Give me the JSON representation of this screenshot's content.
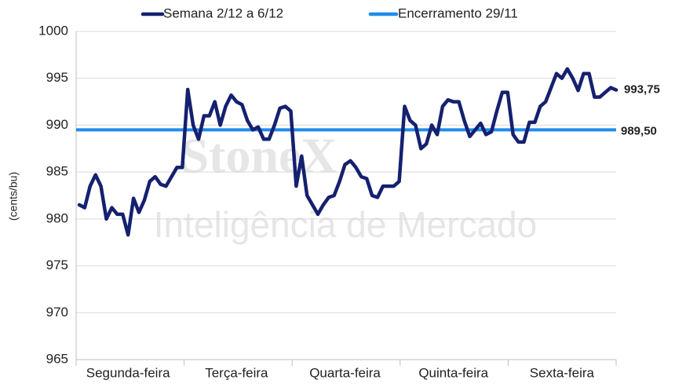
{
  "chart_data": {
    "type": "line",
    "y_label": "(cents/bu)",
    "watermark": [
      "StoneX",
      "Inteligência de Mercado"
    ],
    "categories": [
      null,
      null,
      null,
      null,
      null,
      null,
      null,
      null,
      null,
      "Segunda-feira",
      null,
      null,
      null,
      null,
      null,
      null,
      null,
      null,
      null,
      null,
      null,
      null,
      null,
      null,
      null,
      null,
      null,
      null,
      null,
      "Terça-feira",
      null,
      null,
      null,
      null,
      null,
      null,
      null,
      null,
      null,
      null,
      null,
      null,
      null,
      null,
      null,
      null,
      null,
      null,
      null,
      "Quarta-feira",
      null,
      null,
      null,
      null,
      null,
      null,
      null,
      null,
      null,
      null,
      null,
      null,
      null,
      null,
      null,
      null,
      null,
      null,
      null,
      "Quinta-feira",
      null,
      null,
      null,
      null,
      null,
      null,
      null,
      null,
      null,
      null,
      null,
      null,
      null,
      null,
      null,
      null,
      null,
      null,
      null,
      "Sexta-feira",
      null,
      null,
      null,
      null,
      null,
      null,
      null,
      null,
      null,
      null
    ],
    "series": [
      {
        "name": "Semana 2/12 a 6/12",
        "color": "#15206f",
        "end_label": "993,75",
        "values": [
          981.5,
          981.2,
          983.5,
          984.7,
          983.5,
          980,
          981.2,
          980.5,
          980.5,
          978.3,
          982.2,
          980.7,
          982,
          984,
          984.5,
          983.7,
          983.5,
          984.5,
          985.5,
          985.5,
          993.8,
          990,
          988.5,
          991,
          991,
          992.5,
          990,
          992,
          993.2,
          992.5,
          992.2,
          990.5,
          989.5,
          989.8,
          988.5,
          988.5,
          990,
          991.8,
          992,
          991.5,
          983.5,
          986.7,
          982.5,
          981.5,
          980.5,
          981.5,
          982.3,
          982.5,
          984,
          985.8,
          986.2,
          985.5,
          984.5,
          984.3,
          982.5,
          982.3,
          983.5,
          983.5,
          983.5,
          984,
          992,
          990.5,
          990,
          987.5,
          988,
          990,
          989,
          992,
          992.7,
          992.5,
          992.5,
          990.5,
          988.8,
          989.5,
          990.2,
          989,
          989.3,
          991.5,
          993.5,
          993.5,
          989,
          988.2,
          988.2,
          990.3,
          990.3,
          992,
          992.5,
          994,
          995.5,
          995,
          996,
          995,
          993.7,
          995.5,
          995.5,
          993,
          993,
          993.5,
          994,
          993.75
        ]
      }
    ],
    "reference_line": {
      "name": "Encerramento 29/11",
      "color": "#1f8ceb",
      "value": 989.5,
      "value_label": "989,50"
    },
    "ylim": [
      965,
      1000
    ],
    "yticks": [
      965,
      970,
      975,
      980,
      985,
      990,
      995,
      1000
    ],
    "grid": true
  }
}
